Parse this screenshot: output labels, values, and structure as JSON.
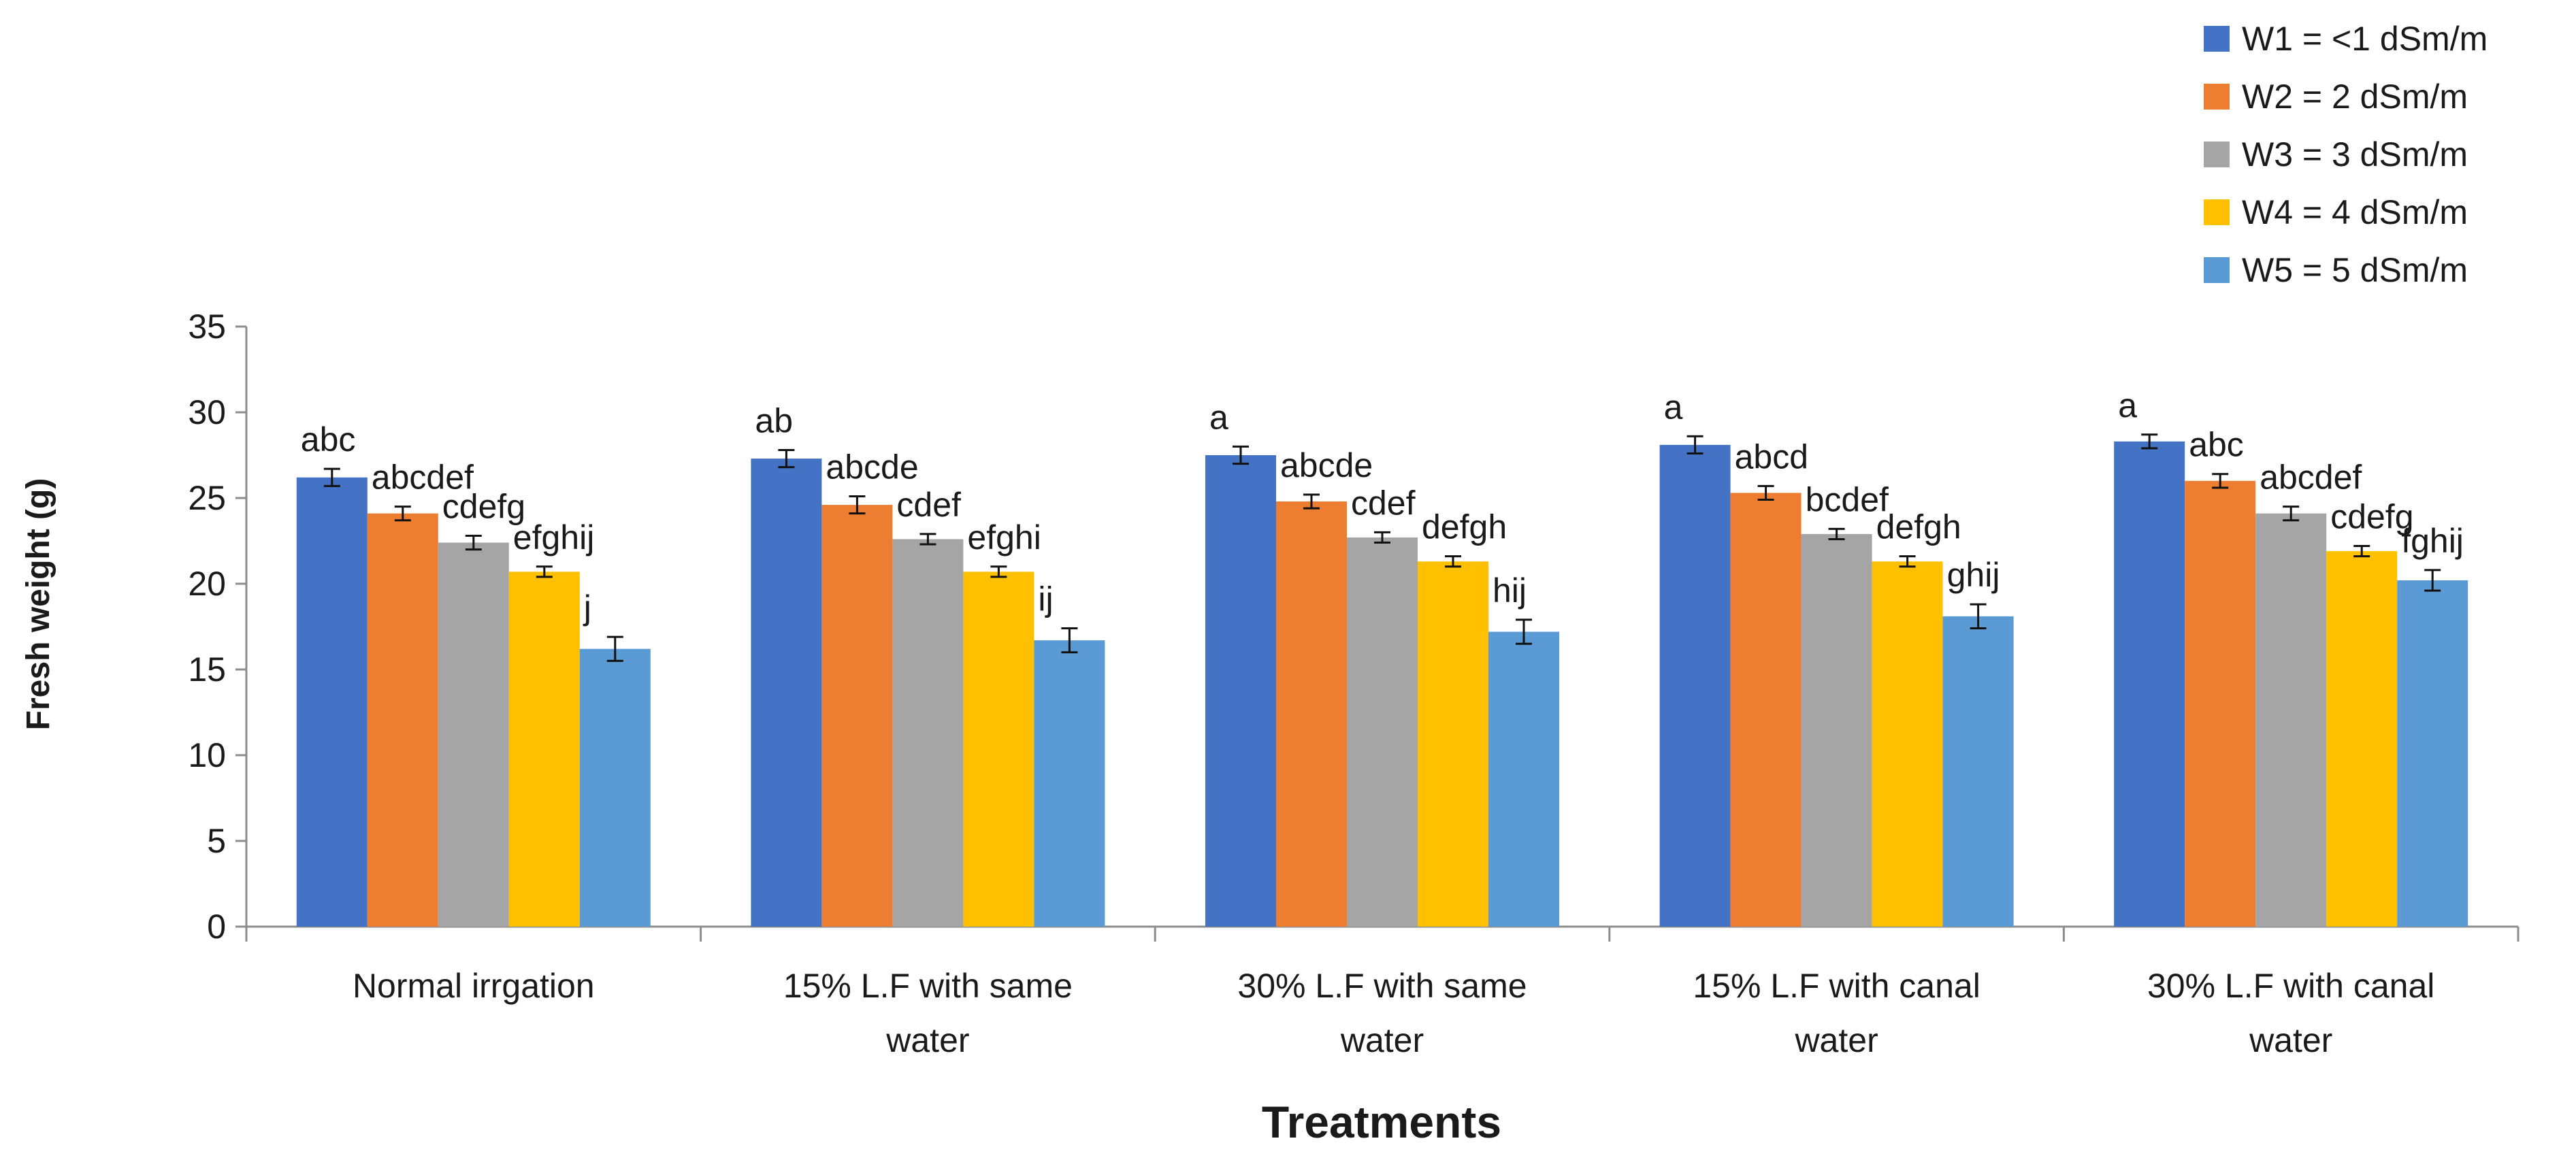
{
  "chart_data": {
    "type": "bar",
    "title": "",
    "xlabel": "Treatments",
    "ylabel": "Fresh weight (g)",
    "ylim": [
      0,
      35
    ],
    "yticks": [
      0,
      5,
      10,
      15,
      20,
      25,
      30,
      35
    ],
    "grid": false,
    "legend_position": "top-right",
    "categories": [
      [
        "Normal irrgation"
      ],
      [
        "15% L.F with same",
        "water"
      ],
      [
        "30% L.F with same",
        "water"
      ],
      [
        "15% L.F with canal",
        "water"
      ],
      [
        "30% L.F with canal",
        "water"
      ]
    ],
    "series": [
      {
        "name": "W1 = <1 dSm/m",
        "color": "#4472C4",
        "values": [
          26.2,
          27.3,
          27.5,
          28.1,
          28.3
        ],
        "errors": [
          0.5,
          0.5,
          0.5,
          0.5,
          0.4
        ],
        "letters": [
          "abc",
          "ab",
          "a",
          "a",
          "a"
        ]
      },
      {
        "name": "W2 = 2 dSm/m",
        "color": "#ED7D31",
        "values": [
          24.1,
          24.6,
          24.8,
          25.3,
          26.0
        ],
        "errors": [
          0.4,
          0.5,
          0.4,
          0.4,
          0.4
        ],
        "letters": [
          "abcdef",
          "abcde",
          "abcde",
          "abcd",
          "abc"
        ]
      },
      {
        "name": "W3 = 3 dSm/m",
        "color": "#A5A5A5",
        "values": [
          22.4,
          22.6,
          22.7,
          22.9,
          24.1
        ],
        "errors": [
          0.4,
          0.3,
          0.3,
          0.3,
          0.4
        ],
        "letters": [
          "cdefg",
          "cdef",
          "cdef",
          "bcdef",
          "abcdef"
        ]
      },
      {
        "name": "W4 = 4 dSm/m",
        "color": "#FFC000",
        "values": [
          20.7,
          20.7,
          21.3,
          21.3,
          21.9
        ],
        "errors": [
          0.3,
          0.3,
          0.3,
          0.3,
          0.3
        ],
        "letters": [
          "efghij",
          "efghi",
          "defgh",
          "defgh",
          "cdefg"
        ]
      },
      {
        "name": "W5 = 5 dSm/m",
        "color": "#5B9BD5",
        "values": [
          16.2,
          16.7,
          17.2,
          18.1,
          20.2
        ],
        "errors": [
          0.7,
          0.7,
          0.7,
          0.7,
          0.6
        ],
        "letters": [
          "j",
          "ij",
          "hij",
          "ghij",
          "fghij"
        ]
      }
    ]
  }
}
